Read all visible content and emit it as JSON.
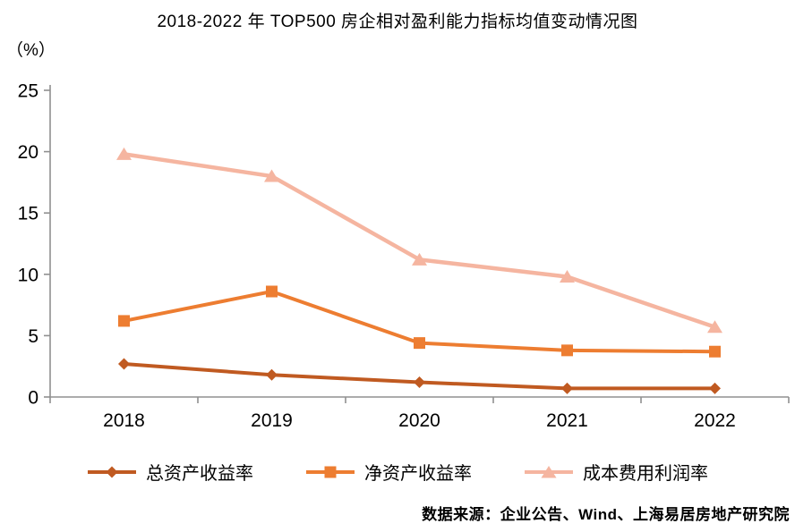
{
  "title": "2018-2022 年 TOP500 房企相对盈利能力指标均值变动情况图",
  "y_unit_label": "（%）",
  "source_note": "数据来源：企业公告、Wind、上海易居房地产研究院",
  "colors": {
    "total_asset_return": "#C05A21",
    "net_asset_return": "#ED7D31",
    "cost_expense_profit": "#F5B5A0",
    "axis": "#909090",
    "text": "#000000"
  },
  "chart_data": {
    "type": "line",
    "title": "2018-2022 年 TOP500 房企相对盈利能力指标均值变动情况图",
    "xlabel": "",
    "ylabel": "（%）",
    "categories": [
      "2018",
      "2019",
      "2020",
      "2021",
      "2022"
    ],
    "series": [
      {
        "key": "roa",
        "name": "总资产收益率",
        "marker": "diamond",
        "color": "#C05A21",
        "values": [
          2.7,
          1.8,
          1.2,
          0.7,
          0.7
        ]
      },
      {
        "key": "roe",
        "name": "净资产收益率",
        "marker": "square",
        "color": "#ED7D31",
        "values": [
          6.2,
          8.6,
          4.4,
          3.8,
          3.7
        ]
      },
      {
        "key": "cost",
        "name": "成本费用利润率",
        "marker": "triangle",
        "color": "#F5B5A0",
        "values": [
          19.8,
          18.0,
          11.2,
          9.8,
          5.7
        ]
      }
    ],
    "ylim": [
      0,
      25
    ],
    "yticks": [
      0,
      5,
      10,
      15,
      20,
      25
    ],
    "grid": false,
    "legend_position": "bottom"
  }
}
